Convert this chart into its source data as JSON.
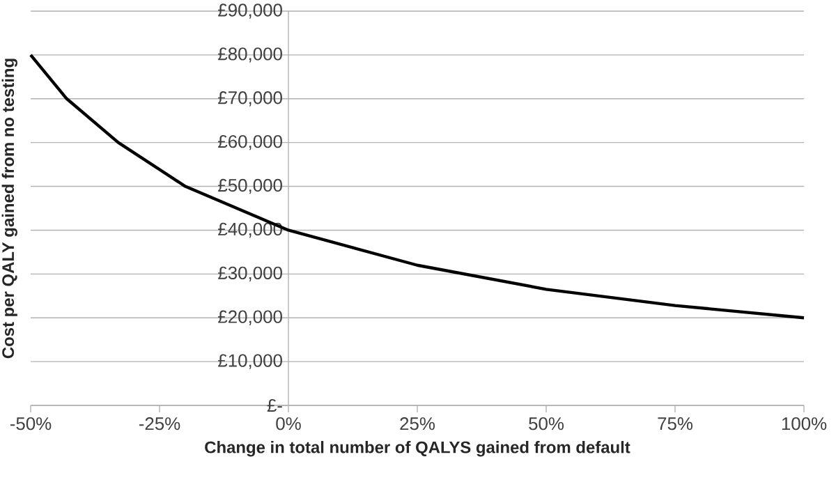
{
  "chart_data": {
    "type": "line",
    "xlabel": "Change in total number of QALYS gained from default",
    "ylabel": "Cost per QALY gained from no testing",
    "x": [
      -50,
      -43,
      -33,
      -20,
      0,
      25,
      50,
      75,
      100
    ],
    "series": [
      {
        "color": "#000000",
        "values": [
          80000,
          70000,
          60000,
          50000,
          40000,
          32000,
          26500,
          22800,
          20000
        ]
      }
    ],
    "xlim": [
      -50,
      100
    ],
    "ylim": [
      0,
      90000
    ],
    "xticks": [
      {
        "value": -50,
        "label": "-50%"
      },
      {
        "value": -25,
        "label": "-25%"
      },
      {
        "value": 0,
        "label": "0%"
      },
      {
        "value": 25,
        "label": "25%"
      },
      {
        "value": 50,
        "label": "50%"
      },
      {
        "value": 75,
        "label": "75%"
      },
      {
        "value": 100,
        "label": "100%"
      }
    ],
    "yticks": [
      {
        "value": 0,
        "label": "£-"
      },
      {
        "value": 10000,
        "label": "£10,000"
      },
      {
        "value": 20000,
        "label": "£20,000"
      },
      {
        "value": 30000,
        "label": "£30,000"
      },
      {
        "value": 40000,
        "label": "£40,000"
      },
      {
        "value": 50000,
        "label": "£50,000"
      },
      {
        "value": 60000,
        "label": "£60,000"
      },
      {
        "value": 70000,
        "label": "£70,000"
      },
      {
        "value": 80000,
        "label": "£80,000"
      },
      {
        "value": 90000,
        "label": "£90,000"
      }
    ],
    "grid": "y",
    "line_style": "solid",
    "marker": "none"
  }
}
